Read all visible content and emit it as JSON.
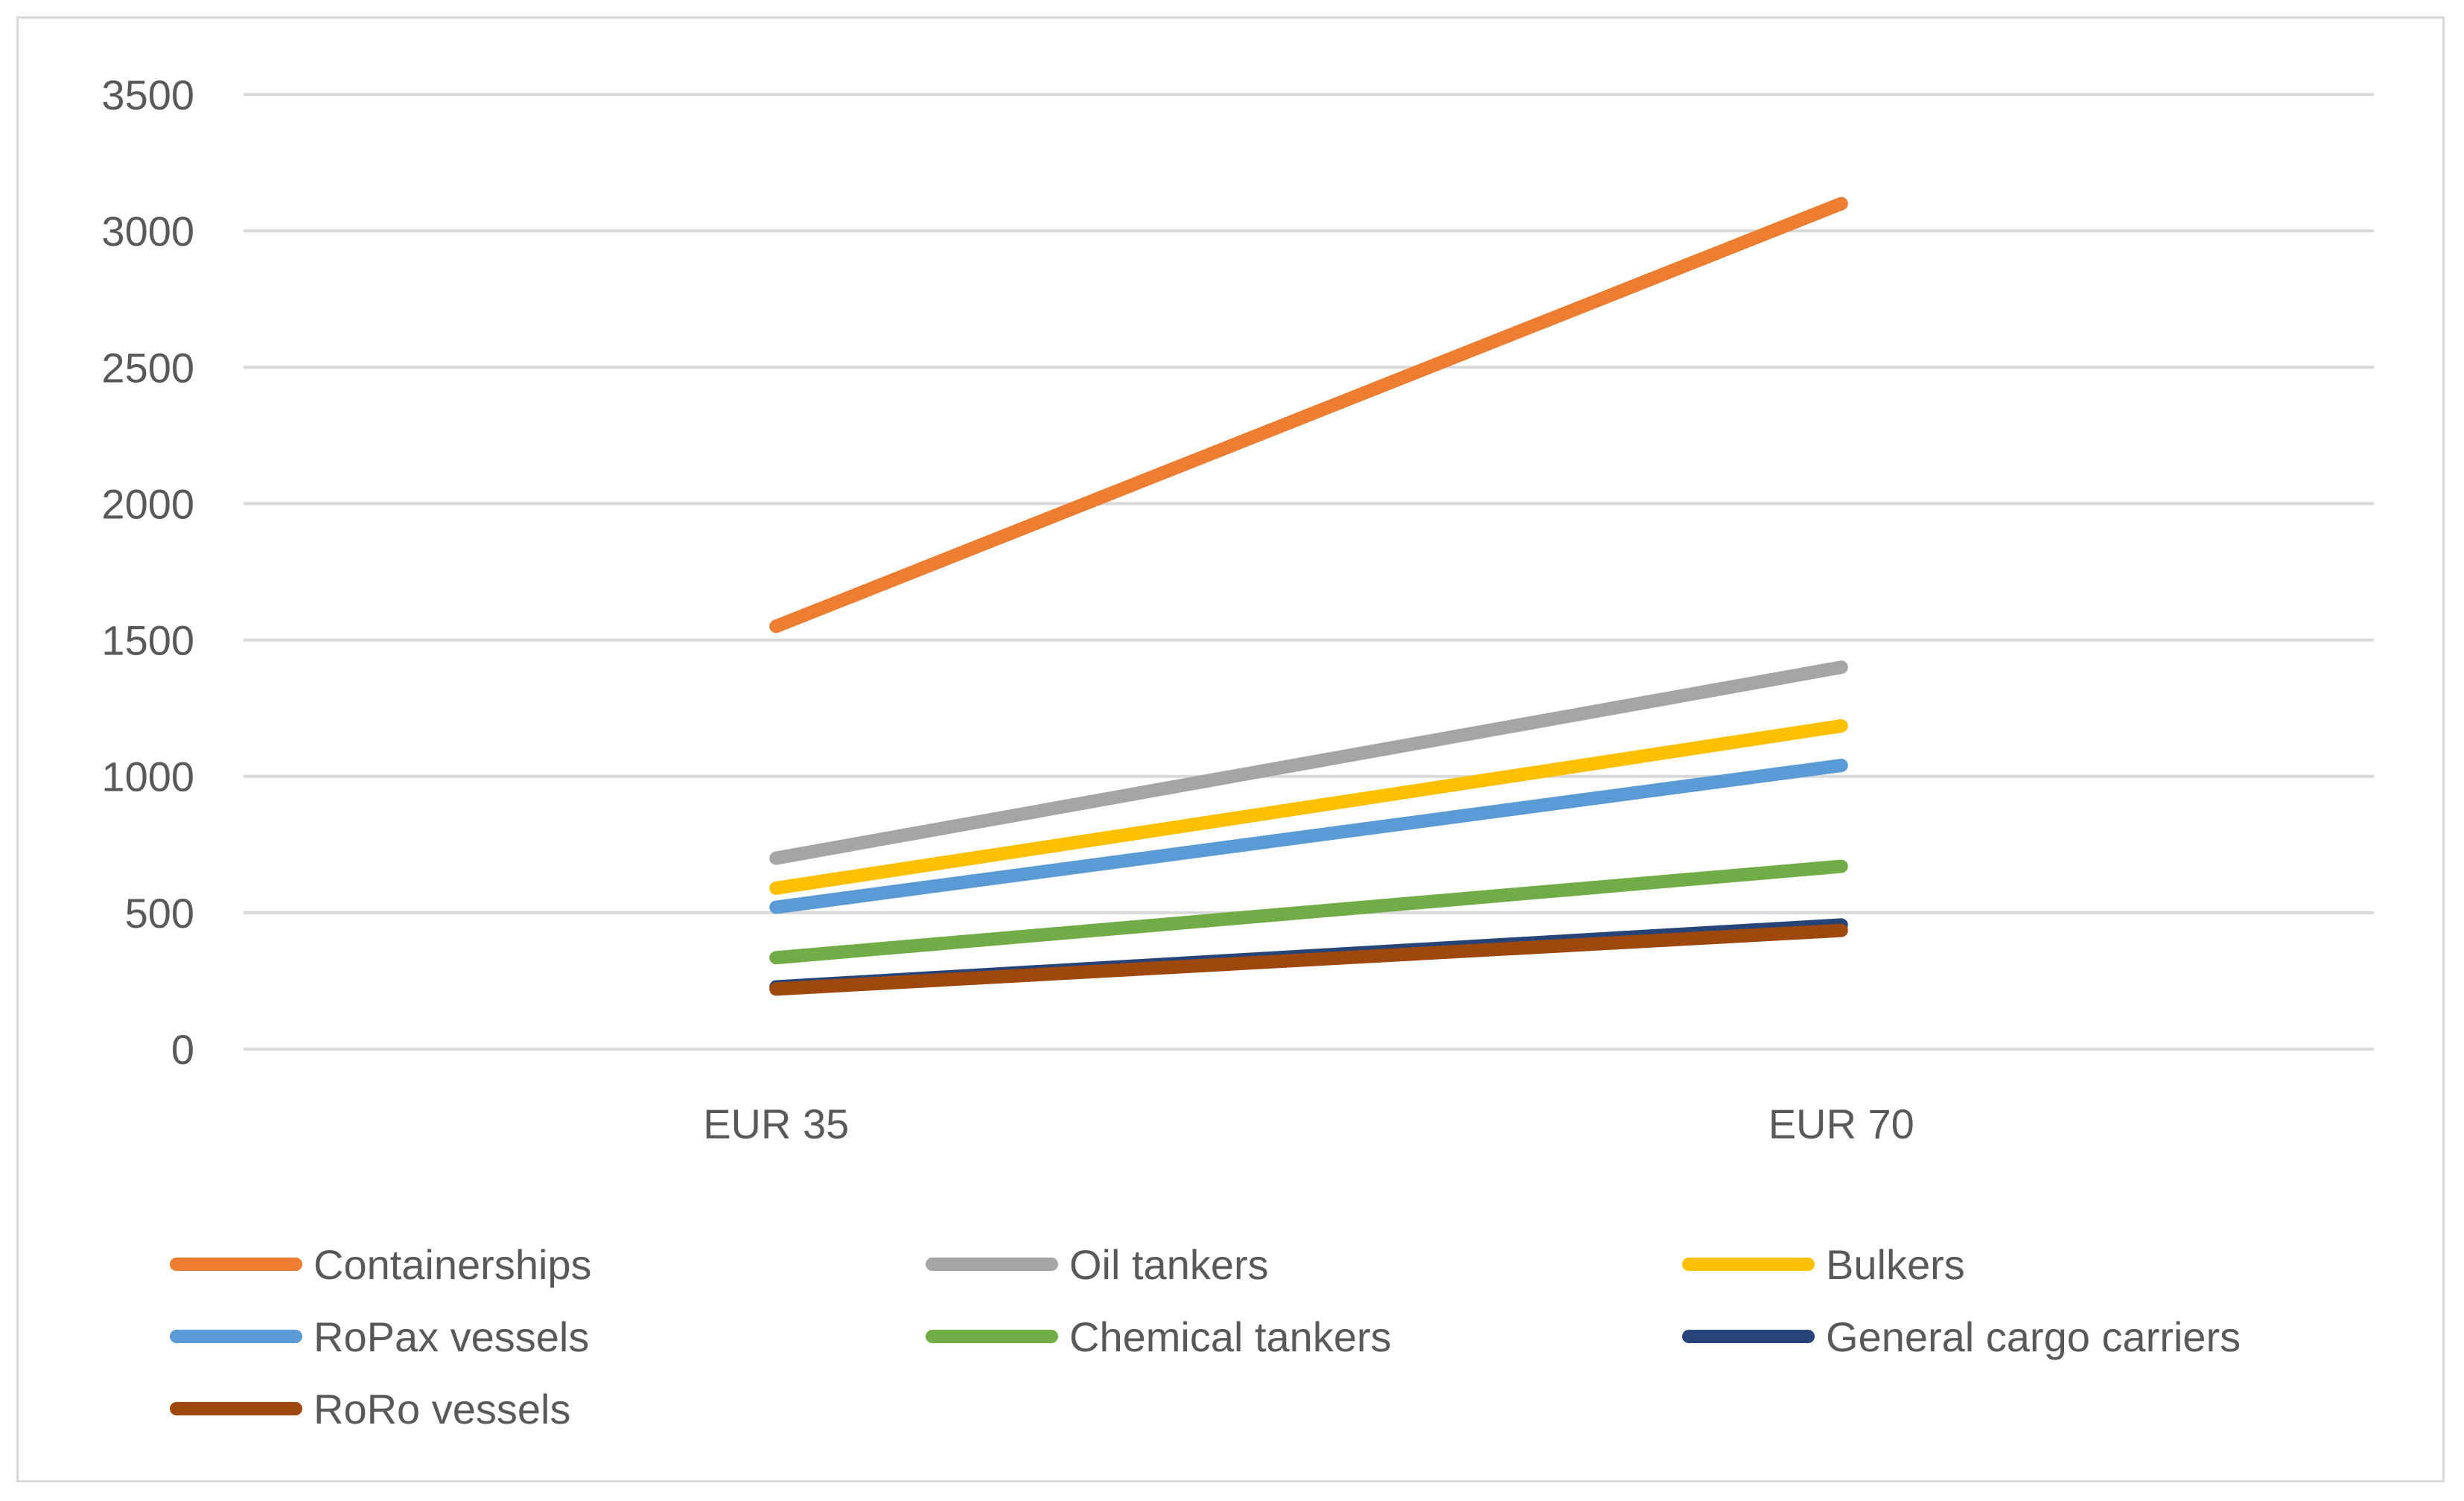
{
  "chart_data": {
    "type": "line",
    "title": "",
    "xlabel": "",
    "ylabel": "",
    "categories": [
      "EUR 35",
      "EUR 70"
    ],
    "ylim": [
      0,
      3500
    ],
    "yticks": [
      0,
      500,
      1000,
      1500,
      2000,
      2500,
      3000,
      3500
    ],
    "grid": true,
    "legend_position": "bottom",
    "series": [
      {
        "name": "Containerships",
        "color": "#ED7D31",
        "values": [
          1550,
          3100
        ]
      },
      {
        "name": "Oil tankers",
        "color": "#A5A5A5",
        "values": [
          700,
          1400
        ]
      },
      {
        "name": "Bulkers",
        "color": "#FFC000",
        "values": [
          590,
          1185
        ]
      },
      {
        "name": "RoPax vessels",
        "color": "#5B9BD5",
        "values": [
          520,
          1040
        ]
      },
      {
        "name": "Chemical tankers",
        "color": "#70AD47",
        "values": [
          335,
          670
        ]
      },
      {
        "name": "General cargo carriers",
        "color": "#264478",
        "values": [
          228,
          455
        ]
      },
      {
        "name": "RoRo vessels",
        "color": "#9E480E",
        "values": [
          220,
          435
        ]
      }
    ]
  }
}
